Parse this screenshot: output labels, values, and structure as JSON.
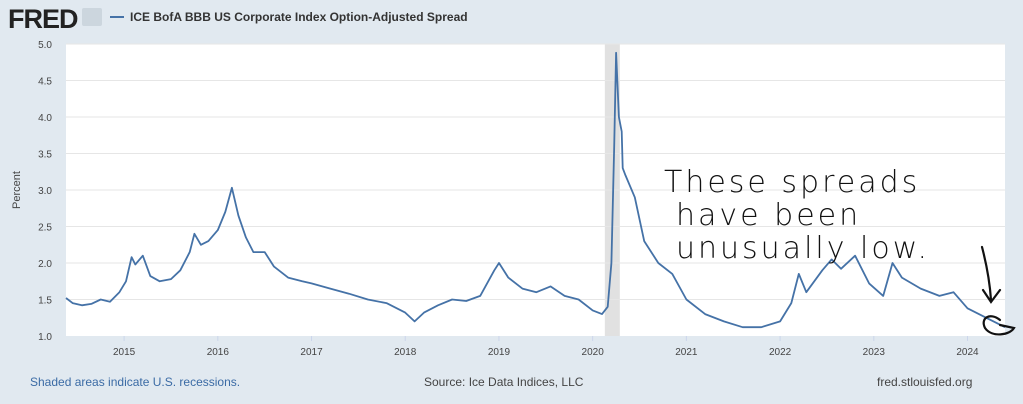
{
  "header": {
    "logo": "FRED",
    "logo_icon": "line-chart-icon",
    "legend_label": "ICE BofA BBB US Corporate Index Option-Adjusted Spread"
  },
  "footer": {
    "recession_note": "Shaded areas indicate U.S. recessions.",
    "source": "Source: Ice Data Indices, LLC",
    "site": "fred.stlouisfed.org"
  },
  "colors": {
    "series": "#4572a7",
    "recession": "#e1e1e1",
    "background": "#e1e9f0",
    "annotation": "#111111"
  },
  "chart_data": {
    "type": "line",
    "title": "",
    "ylabel": "Percent",
    "xlabel": "",
    "ylim": [
      1.0,
      5.0
    ],
    "xlim": [
      2014.38,
      2024.4
    ],
    "yticks": [
      "1.0",
      "1.5",
      "2.0",
      "2.5",
      "3.0",
      "3.5",
      "4.0",
      "4.5",
      "5.0"
    ],
    "xticks": [
      "2015",
      "2016",
      "2017",
      "2018",
      "2019",
      "2020",
      "2021",
      "2022",
      "2023",
      "2024"
    ],
    "grid": true,
    "recessions": [
      [
        2020.13,
        2020.29
      ]
    ],
    "series": [
      {
        "name": "ICE BofA BBB US Corporate Index Option-Adjusted Spread",
        "x": [
          2014.38,
          2014.45,
          2014.55,
          2014.65,
          2014.75,
          2014.85,
          2014.95,
          2015.02,
          2015.08,
          2015.12,
          2015.2,
          2015.28,
          2015.38,
          2015.5,
          2015.6,
          2015.7,
          2015.75,
          2015.82,
          2015.9,
          2016.0,
          2016.08,
          2016.15,
          2016.22,
          2016.3,
          2016.38,
          2016.5,
          2016.6,
          2016.75,
          2016.9,
          2017.0,
          2017.2,
          2017.4,
          2017.6,
          2017.8,
          2018.0,
          2018.1,
          2018.2,
          2018.35,
          2018.5,
          2018.65,
          2018.8,
          2018.95,
          2019.0,
          2019.1,
          2019.25,
          2019.4,
          2019.55,
          2019.7,
          2019.85,
          2020.0,
          2020.1,
          2020.16,
          2020.2,
          2020.23,
          2020.25,
          2020.28,
          2020.31,
          2020.32,
          2020.35,
          2020.45,
          2020.55,
          2020.7,
          2020.85,
          2021.0,
          2021.2,
          2021.4,
          2021.6,
          2021.8,
          2022.0,
          2022.12,
          2022.2,
          2022.28,
          2022.45,
          2022.55,
          2022.65,
          2022.8,
          2022.95,
          2023.1,
          2023.2,
          2023.3,
          2023.5,
          2023.7,
          2023.85,
          2024.0,
          2024.2,
          2024.4
        ],
        "values": [
          1.52,
          1.45,
          1.42,
          1.44,
          1.5,
          1.47,
          1.6,
          1.75,
          2.08,
          1.98,
          2.1,
          1.82,
          1.75,
          1.78,
          1.9,
          2.15,
          2.4,
          2.25,
          2.3,
          2.45,
          2.7,
          3.03,
          2.65,
          2.35,
          2.15,
          2.15,
          1.95,
          1.8,
          1.75,
          1.72,
          1.65,
          1.58,
          1.5,
          1.45,
          1.32,
          1.2,
          1.32,
          1.42,
          1.5,
          1.48,
          1.55,
          1.9,
          2.0,
          1.8,
          1.65,
          1.6,
          1.68,
          1.55,
          1.5,
          1.35,
          1.3,
          1.4,
          2.0,
          3.6,
          4.88,
          4.0,
          3.8,
          3.3,
          3.2,
          2.9,
          2.3,
          2.0,
          1.85,
          1.5,
          1.3,
          1.2,
          1.12,
          1.12,
          1.2,
          1.45,
          1.85,
          1.6,
          1.9,
          2.05,
          1.92,
          2.1,
          1.72,
          1.55,
          2.0,
          1.8,
          1.65,
          1.55,
          1.6,
          1.38,
          1.25,
          1.12
        ]
      }
    ],
    "annotation": {
      "lines": [
        "These spreads",
        "have been",
        "unusually low."
      ]
    }
  }
}
